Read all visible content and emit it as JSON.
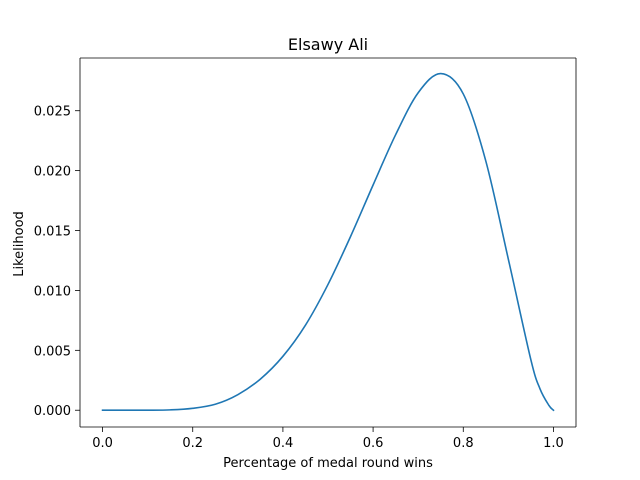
{
  "chart_data": {
    "type": "line",
    "title": "Elsawy Ali",
    "xlabel": "Percentage of medal round wins",
    "ylabel": "Likelihood",
    "xlim": [
      -0.05,
      1.05
    ],
    "ylim": [
      -0.0014,
      0.0294
    ],
    "x_ticks": [
      0.0,
      0.2,
      0.4,
      0.6,
      0.8,
      1.0
    ],
    "x_tick_labels": [
      "0.0",
      "0.2",
      "0.4",
      "0.6",
      "0.8",
      "1.0"
    ],
    "y_ticks": [
      0.0,
      0.005,
      0.01,
      0.015,
      0.02,
      0.025
    ],
    "y_tick_labels": [
      "0.000",
      "0.005",
      "0.010",
      "0.015",
      "0.020",
      "0.025"
    ],
    "grid": false,
    "legend": "none",
    "series": [
      {
        "color": "#1f77b4",
        "x": [
          0.0,
          0.05,
          0.1,
          0.15,
          0.2,
          0.25,
          0.3,
          0.35,
          0.4,
          0.45,
          0.5,
          0.55,
          0.6,
          0.65,
          0.7,
          0.75,
          0.8,
          0.85,
          0.9,
          0.95,
          0.97,
          0.99,
          1.0
        ],
        "y": [
          0.0,
          0.0,
          2e-06,
          3e-05,
          0.00016,
          0.0005,
          0.0013,
          0.0026,
          0.0045,
          0.0071,
          0.0105,
          0.0145,
          0.0188,
          0.023,
          0.0265,
          0.0281,
          0.0264,
          0.0208,
          0.0126,
          0.0042,
          0.0018,
          0.0004,
          0.0
        ]
      }
    ]
  }
}
